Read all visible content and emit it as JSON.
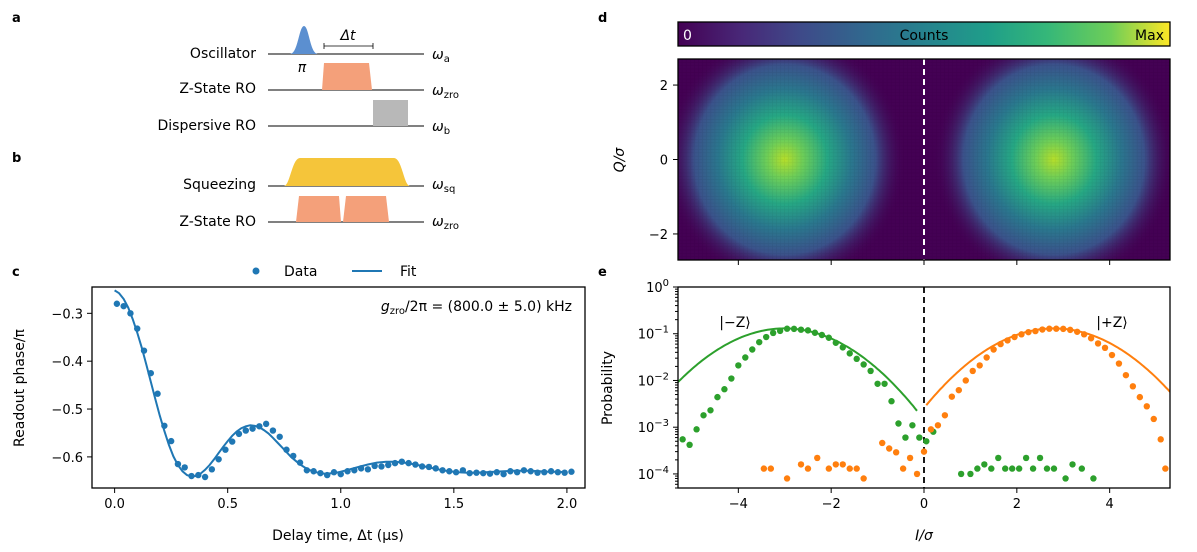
{
  "panels": {
    "a": {
      "label": "a",
      "rows": [
        {
          "label": "Oscillator",
          "freq": "ω",
          "freq_sub": "a"
        },
        {
          "label": "Z-State RO",
          "freq": "ω",
          "freq_sub": "zro"
        },
        {
          "label": "Dispersive RO",
          "freq": "ω",
          "freq_sub": "b"
        }
      ],
      "pulse_label": "π",
      "delay_label": "Δt"
    },
    "b": {
      "label": "b",
      "rows": [
        {
          "label": "Squeezing",
          "freq": "ω",
          "freq_sub": "sq"
        },
        {
          "label": "Z-State RO",
          "freq": "ω",
          "freq_sub": "zro"
        }
      ]
    },
    "c": {
      "label": "c"
    },
    "d": {
      "label": "d",
      "colorbar": {
        "min_label": "0",
        "title": "Counts",
        "max_label": "Max"
      }
    },
    "e": {
      "label": "e"
    }
  },
  "colors": {
    "data": "#1f77b4",
    "minus_z": "#2ca02c",
    "plus_z": "#ff7f0e",
    "gaussian": "#5b8fd0",
    "zro_pulse": "#f4a07a",
    "disp_pulse": "#b8b8b8",
    "squeeze": "#f5c53a"
  },
  "chart_data": [
    {
      "id": "c",
      "type": "line",
      "title": "",
      "xlabel": "Delay time, Δt (µs)",
      "ylabel": "Readout phase/π",
      "xlim": [
        -0.1,
        2.08
      ],
      "ylim": [
        -0.665,
        -0.245
      ],
      "xticks": [
        0.0,
        0.5,
        1.0,
        1.5,
        2.0
      ],
      "xtick_labels": [
        "0.0",
        "0.5",
        "1.0",
        "1.5",
        "2.0"
      ],
      "yticks": [
        -0.3,
        -0.4,
        -0.5,
        -0.6
      ],
      "ytick_labels": [
        "−0.3",
        "−0.4",
        "−0.5",
        "−0.6"
      ],
      "legend": {
        "placement": "top-center, outside",
        "entries": [
          "Data",
          "Fit"
        ]
      },
      "annotation": {
        "lhs": "g",
        "lhs_sub": "zro",
        "rest": "/2π = ",
        "value": "(800.0 ± 5.0) kHz"
      },
      "series": [
        {
          "name": "Data",
          "style": "markers",
          "x": [
            0.01,
            0.04,
            0.07,
            0.1,
            0.13,
            0.16,
            0.19,
            0.22,
            0.25,
            0.28,
            0.31,
            0.34,
            0.37,
            0.4,
            0.43,
            0.46,
            0.49,
            0.52,
            0.55,
            0.58,
            0.61,
            0.64,
            0.67,
            0.7,
            0.73,
            0.76,
            0.79,
            0.82,
            0.85,
            0.88,
            0.91,
            0.94,
            0.97,
            1.0,
            1.03,
            1.06,
            1.09,
            1.12,
            1.15,
            1.18,
            1.21,
            1.24,
            1.27,
            1.3,
            1.33,
            1.36,
            1.39,
            1.42,
            1.45,
            1.48,
            1.51,
            1.54,
            1.57,
            1.6,
            1.63,
            1.66,
            1.69,
            1.72,
            1.75,
            1.78,
            1.81,
            1.84,
            1.87,
            1.9,
            1.93,
            1.96,
            1.99,
            2.02
          ],
          "y": [
            -0.28,
            -0.285,
            -0.3,
            -0.332,
            -0.378,
            -0.425,
            -0.468,
            -0.535,
            -0.567,
            -0.615,
            -0.622,
            -0.64,
            -0.638,
            -0.642,
            -0.626,
            -0.605,
            -0.585,
            -0.568,
            -0.552,
            -0.545,
            -0.541,
            -0.536,
            -0.531,
            -0.545,
            -0.558,
            -0.585,
            -0.598,
            -0.612,
            -0.628,
            -0.63,
            -0.634,
            -0.638,
            -0.632,
            -0.636,
            -0.63,
            -0.628,
            -0.624,
            -0.626,
            -0.619,
            -0.62,
            -0.617,
            -0.613,
            -0.61,
            -0.613,
            -0.616,
            -0.62,
            -0.621,
            -0.624,
            -0.628,
            -0.63,
            -0.632,
            -0.628,
            -0.634,
            -0.633,
            -0.634,
            -0.635,
            -0.632,
            -0.636,
            -0.63,
            -0.632,
            -0.628,
            -0.63,
            -0.633,
            -0.632,
            -0.63,
            -0.632,
            -0.633,
            -0.631
          ]
        },
        {
          "name": "Fit",
          "style": "line",
          "x": [
            0.0,
            0.02,
            0.04,
            0.06,
            0.08,
            0.1,
            0.12,
            0.14,
            0.16,
            0.18,
            0.2,
            0.22,
            0.24,
            0.26,
            0.28,
            0.3,
            0.32,
            0.34,
            0.36,
            0.38,
            0.4,
            0.42,
            0.44,
            0.46,
            0.48,
            0.5,
            0.52,
            0.54,
            0.56,
            0.58,
            0.6,
            0.62,
            0.64,
            0.66,
            0.68,
            0.7,
            0.72,
            0.74,
            0.76,
            0.78,
            0.8,
            0.82,
            0.84,
            0.86,
            0.88,
            0.9,
            0.92,
            0.94,
            0.96,
            0.98,
            1.0,
            1.04,
            1.08,
            1.12,
            1.16,
            1.2,
            1.24,
            1.28,
            1.32,
            1.36,
            1.4,
            1.44,
            1.48,
            1.52,
            1.56,
            1.6,
            1.64,
            1.68,
            1.72,
            1.76,
            1.8,
            1.84,
            1.88,
            1.92,
            1.96,
            2.0
          ],
          "y": [
            -0.252,
            -0.258,
            -0.27,
            -0.288,
            -0.312,
            -0.34,
            -0.372,
            -0.407,
            -0.443,
            -0.479,
            -0.514,
            -0.546,
            -0.575,
            -0.599,
            -0.617,
            -0.63,
            -0.638,
            -0.641,
            -0.64,
            -0.635,
            -0.627,
            -0.617,
            -0.605,
            -0.592,
            -0.579,
            -0.567,
            -0.556,
            -0.547,
            -0.54,
            -0.536,
            -0.534,
            -0.535,
            -0.538,
            -0.544,
            -0.551,
            -0.56,
            -0.57,
            -0.58,
            -0.59,
            -0.6,
            -0.608,
            -0.616,
            -0.622,
            -0.627,
            -0.631,
            -0.633,
            -0.635,
            -0.635,
            -0.634,
            -0.633,
            -0.631,
            -0.626,
            -0.621,
            -0.616,
            -0.612,
            -0.61,
            -0.61,
            -0.612,
            -0.615,
            -0.619,
            -0.623,
            -0.627,
            -0.63,
            -0.632,
            -0.633,
            -0.633,
            -0.632,
            -0.631,
            -0.63,
            -0.629,
            -0.629,
            -0.629,
            -0.63,
            -0.631,
            -0.631,
            -0.632
          ]
        }
      ]
    },
    {
      "id": "d",
      "type": "heatmap",
      "xlabel": "",
      "ylabel": "Q/σ",
      "xlim": [
        -5.3,
        5.3
      ],
      "ylim": [
        -2.7,
        2.7
      ],
      "yticks": [
        2,
        0,
        -2
      ],
      "ytick_labels": [
        "2",
        "0",
        "−2"
      ],
      "xticks": [
        -4,
        -2,
        0,
        2,
        4
      ],
      "threshold_line": {
        "x": 0,
        "style": "dashed white"
      },
      "blobs": [
        {
          "name": "|−Z⟩",
          "center_x": -3.0,
          "center_y": 0.0,
          "sigma": 1.0
        },
        {
          "name": "|+Z⟩",
          "center_x": 2.8,
          "center_y": 0.0,
          "sigma": 1.0
        }
      ],
      "colormap": "viridis"
    },
    {
      "id": "e",
      "type": "scatter",
      "xlabel": "I/σ",
      "ylabel": "Probability",
      "yscale": "log",
      "xlim": [
        -5.3,
        5.3
      ],
      "ylim": [
        5e-05,
        1.0
      ],
      "xticks": [
        -4,
        -2,
        0,
        2,
        4
      ],
      "xtick_labels": [
        "−4",
        "−2",
        "0",
        "2",
        "4"
      ],
      "yticks": [
        1,
        0.1,
        0.01,
        0.001,
        0.0001
      ],
      "ytick_labels": [
        {
          "base": "10",
          "exp": "0"
        },
        {
          "base": "10",
          "exp": "−1"
        },
        {
          "base": "10",
          "exp": "−2"
        },
        {
          "base": "10",
          "exp": "−3"
        },
        {
          "base": "10",
          "exp": "−4"
        }
      ],
      "threshold_line": {
        "x": 0,
        "style": "dashed black"
      },
      "annotations": [
        "|−Z⟩",
        "|+Z⟩"
      ],
      "series": [
        {
          "name": "|−Z⟩ fit",
          "style": "line",
          "center": -3.0,
          "sigma": 1.0,
          "peak": 0.13,
          "x_range": [
            -5.3,
            -0.15
          ]
        },
        {
          "name": "|+Z⟩ fit",
          "style": "line",
          "center": 2.8,
          "sigma": 1.0,
          "peak": 0.13,
          "x_range": [
            0.05,
            5.3
          ]
        },
        {
          "name": "|−Z⟩ data",
          "style": "markers",
          "x": [
            -5.2,
            -5.05,
            -4.9,
            -4.75,
            -4.6,
            -4.45,
            -4.3,
            -4.15,
            -4.0,
            -3.85,
            -3.7,
            -3.55,
            -3.4,
            -3.25,
            -3.1,
            -2.95,
            -2.8,
            -2.65,
            -2.5,
            -2.35,
            -2.2,
            -2.05,
            -1.9,
            -1.75,
            -1.6,
            -1.45,
            -1.3,
            -1.15,
            -1.0,
            -0.85,
            -0.7,
            -0.55,
            -0.4,
            -0.25,
            -0.1,
            0.05,
            0.2,
            0.8,
            1.0,
            1.15,
            1.3,
            1.45,
            1.6,
            1.75,
            1.9,
            2.05,
            2.2,
            2.35,
            2.5,
            2.65,
            2.8,
            3.05,
            3.2,
            3.4,
            3.65
          ],
          "y": [
            0.00055,
            0.00042,
            0.0009,
            0.0018,
            0.0023,
            0.0044,
            0.0065,
            0.011,
            0.021,
            0.031,
            0.046,
            0.066,
            0.085,
            0.104,
            0.115,
            0.128,
            0.127,
            0.122,
            0.118,
            0.105,
            0.094,
            0.082,
            0.064,
            0.051,
            0.038,
            0.029,
            0.022,
            0.016,
            0.0085,
            0.0085,
            0.0036,
            0.0012,
            0.0006,
            0.0011,
            0.0006,
            0.0005,
            0.0008,
            0.0001,
            0.0001,
            0.00013,
            0.00016,
            0.00013,
            0.00022,
            0.00013,
            0.00013,
            0.00013,
            0.00022,
            0.00013,
            0.00022,
            0.00013,
            0.00013,
            8e-05,
            0.00016,
            0.00013,
            8e-05
          ]
        },
        {
          "name": "|+Z⟩ data",
          "style": "markers",
          "x": [
            -3.45,
            -3.3,
            -2.95,
            -2.65,
            -2.5,
            -2.3,
            -2.05,
            -1.9,
            -1.75,
            -1.6,
            -1.45,
            -1.3,
            -0.9,
            -0.75,
            -0.6,
            -0.45,
            -0.3,
            -0.15,
            0.0,
            0.15,
            0.3,
            0.45,
            0.6,
            0.75,
            0.9,
            1.05,
            1.2,
            1.35,
            1.5,
            1.65,
            1.8,
            1.95,
            2.1,
            2.25,
            2.4,
            2.55,
            2.7,
            2.85,
            3.0,
            3.15,
            3.3,
            3.45,
            3.6,
            3.75,
            3.9,
            4.05,
            4.2,
            4.35,
            4.5,
            4.65,
            4.8,
            4.95,
            5.1,
            5.2
          ],
          "y": [
            0.00013,
            0.00013,
            8e-05,
            0.00016,
            0.00013,
            0.00022,
            0.00013,
            0.00016,
            0.00016,
            0.00013,
            0.00013,
            8e-05,
            0.00046,
            0.00035,
            0.00029,
            0.00013,
            0.00022,
            0.0001,
            0.0003,
            0.0009,
            0.0011,
            0.0018,
            0.0045,
            0.0062,
            0.01,
            0.016,
            0.021,
            0.031,
            0.046,
            0.06,
            0.072,
            0.085,
            0.097,
            0.108,
            0.114,
            0.123,
            0.128,
            0.128,
            0.127,
            0.121,
            0.11,
            0.097,
            0.08,
            0.062,
            0.05,
            0.035,
            0.023,
            0.013,
            0.0075,
            0.0044,
            0.0028,
            0.0015,
            0.00055,
            0.00013
          ]
        }
      ]
    }
  ]
}
